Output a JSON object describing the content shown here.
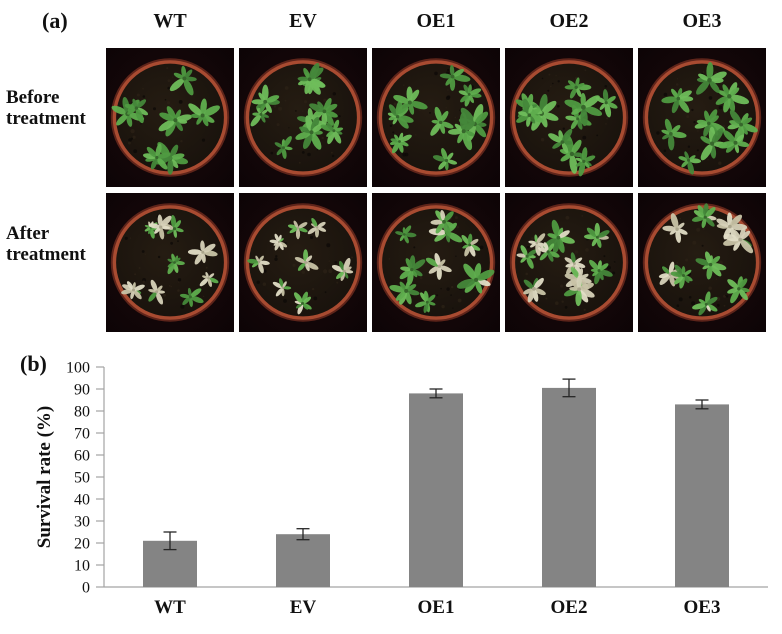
{
  "figure": {
    "panel_a": {
      "label": "(a)",
      "columns": [
        "WT",
        "EV",
        "OE1",
        "OE2",
        "OE3"
      ],
      "row_labels": [
        {
          "line1": "Before",
          "line2": "treatment"
        },
        {
          "line1": "After",
          "line2": "treatment"
        }
      ]
    },
    "panel_b": {
      "label": "(b)"
    }
  },
  "photos": {
    "palette": {
      "background": "#0c0406",
      "vignette": "#1d090b",
      "pot_rim": "#a84b31",
      "pot_rim_dark": "#5e241a",
      "soil": "#16100b",
      "soil_light": "#251c12",
      "leaf_greens": [
        "#4f9a41",
        "#5fae4e",
        "#6fbd5b",
        "#45873a"
      ],
      "leaf_pale": [
        "#d6d1b8",
        "#c8c3a6",
        "#e2ddc6"
      ]
    },
    "pots": [
      {
        "id": "before-wt",
        "row": 0,
        "col": 0,
        "rosettes": 7,
        "green_ratio": 1.0,
        "size": 1.05,
        "seed": 11
      },
      {
        "id": "before-ev",
        "row": 0,
        "col": 1,
        "rosettes": 9,
        "green_ratio": 1.0,
        "size": 0.9,
        "seed": 22
      },
      {
        "id": "before-oe1",
        "row": 0,
        "col": 2,
        "rosettes": 9,
        "green_ratio": 1.0,
        "size": 0.95,
        "seed": 33
      },
      {
        "id": "before-oe2",
        "row": 0,
        "col": 3,
        "rosettes": 10,
        "green_ratio": 1.0,
        "size": 1.05,
        "seed": 47
      },
      {
        "id": "before-oe3",
        "row": 0,
        "col": 4,
        "rosettes": 9,
        "green_ratio": 1.0,
        "size": 1.0,
        "seed": 55
      },
      {
        "id": "after-wt",
        "row": 1,
        "col": 0,
        "rosettes": 9,
        "green_ratio": 0.3,
        "size": 0.8,
        "seed": 66
      },
      {
        "id": "after-ev",
        "row": 1,
        "col": 1,
        "rosettes": 8,
        "green_ratio": 0.12,
        "size": 0.75,
        "seed": 78
      },
      {
        "id": "after-oe1",
        "row": 1,
        "col": 2,
        "rosettes": 9,
        "green_ratio": 0.8,
        "size": 0.9,
        "seed": 88
      },
      {
        "id": "after-oe2",
        "row": 1,
        "col": 3,
        "rosettes": 10,
        "green_ratio": 0.75,
        "size": 0.9,
        "seed": 99
      },
      {
        "id": "after-oe3",
        "row": 1,
        "col": 4,
        "rosettes": 9,
        "green_ratio": 0.55,
        "size": 0.85,
        "seed": 112
      }
    ]
  },
  "chart_data": {
    "type": "bar",
    "title": "",
    "categories": [
      "WT",
      "EV",
      "OE1",
      "OE2",
      "OE3"
    ],
    "values": [
      21,
      24,
      88,
      90.5,
      83
    ],
    "errors": [
      4,
      2.5,
      2,
      4,
      2
    ],
    "xlabel": "",
    "ylabel": "Survival rate (%)",
    "ylim": [
      0,
      100
    ],
    "ytick_step": 10,
    "grid": false,
    "legend": "none",
    "bar_color": "#848484",
    "axis_color": "#a3a3a3",
    "error_bar_color": "#262626",
    "tick_label_color": "#111111"
  }
}
